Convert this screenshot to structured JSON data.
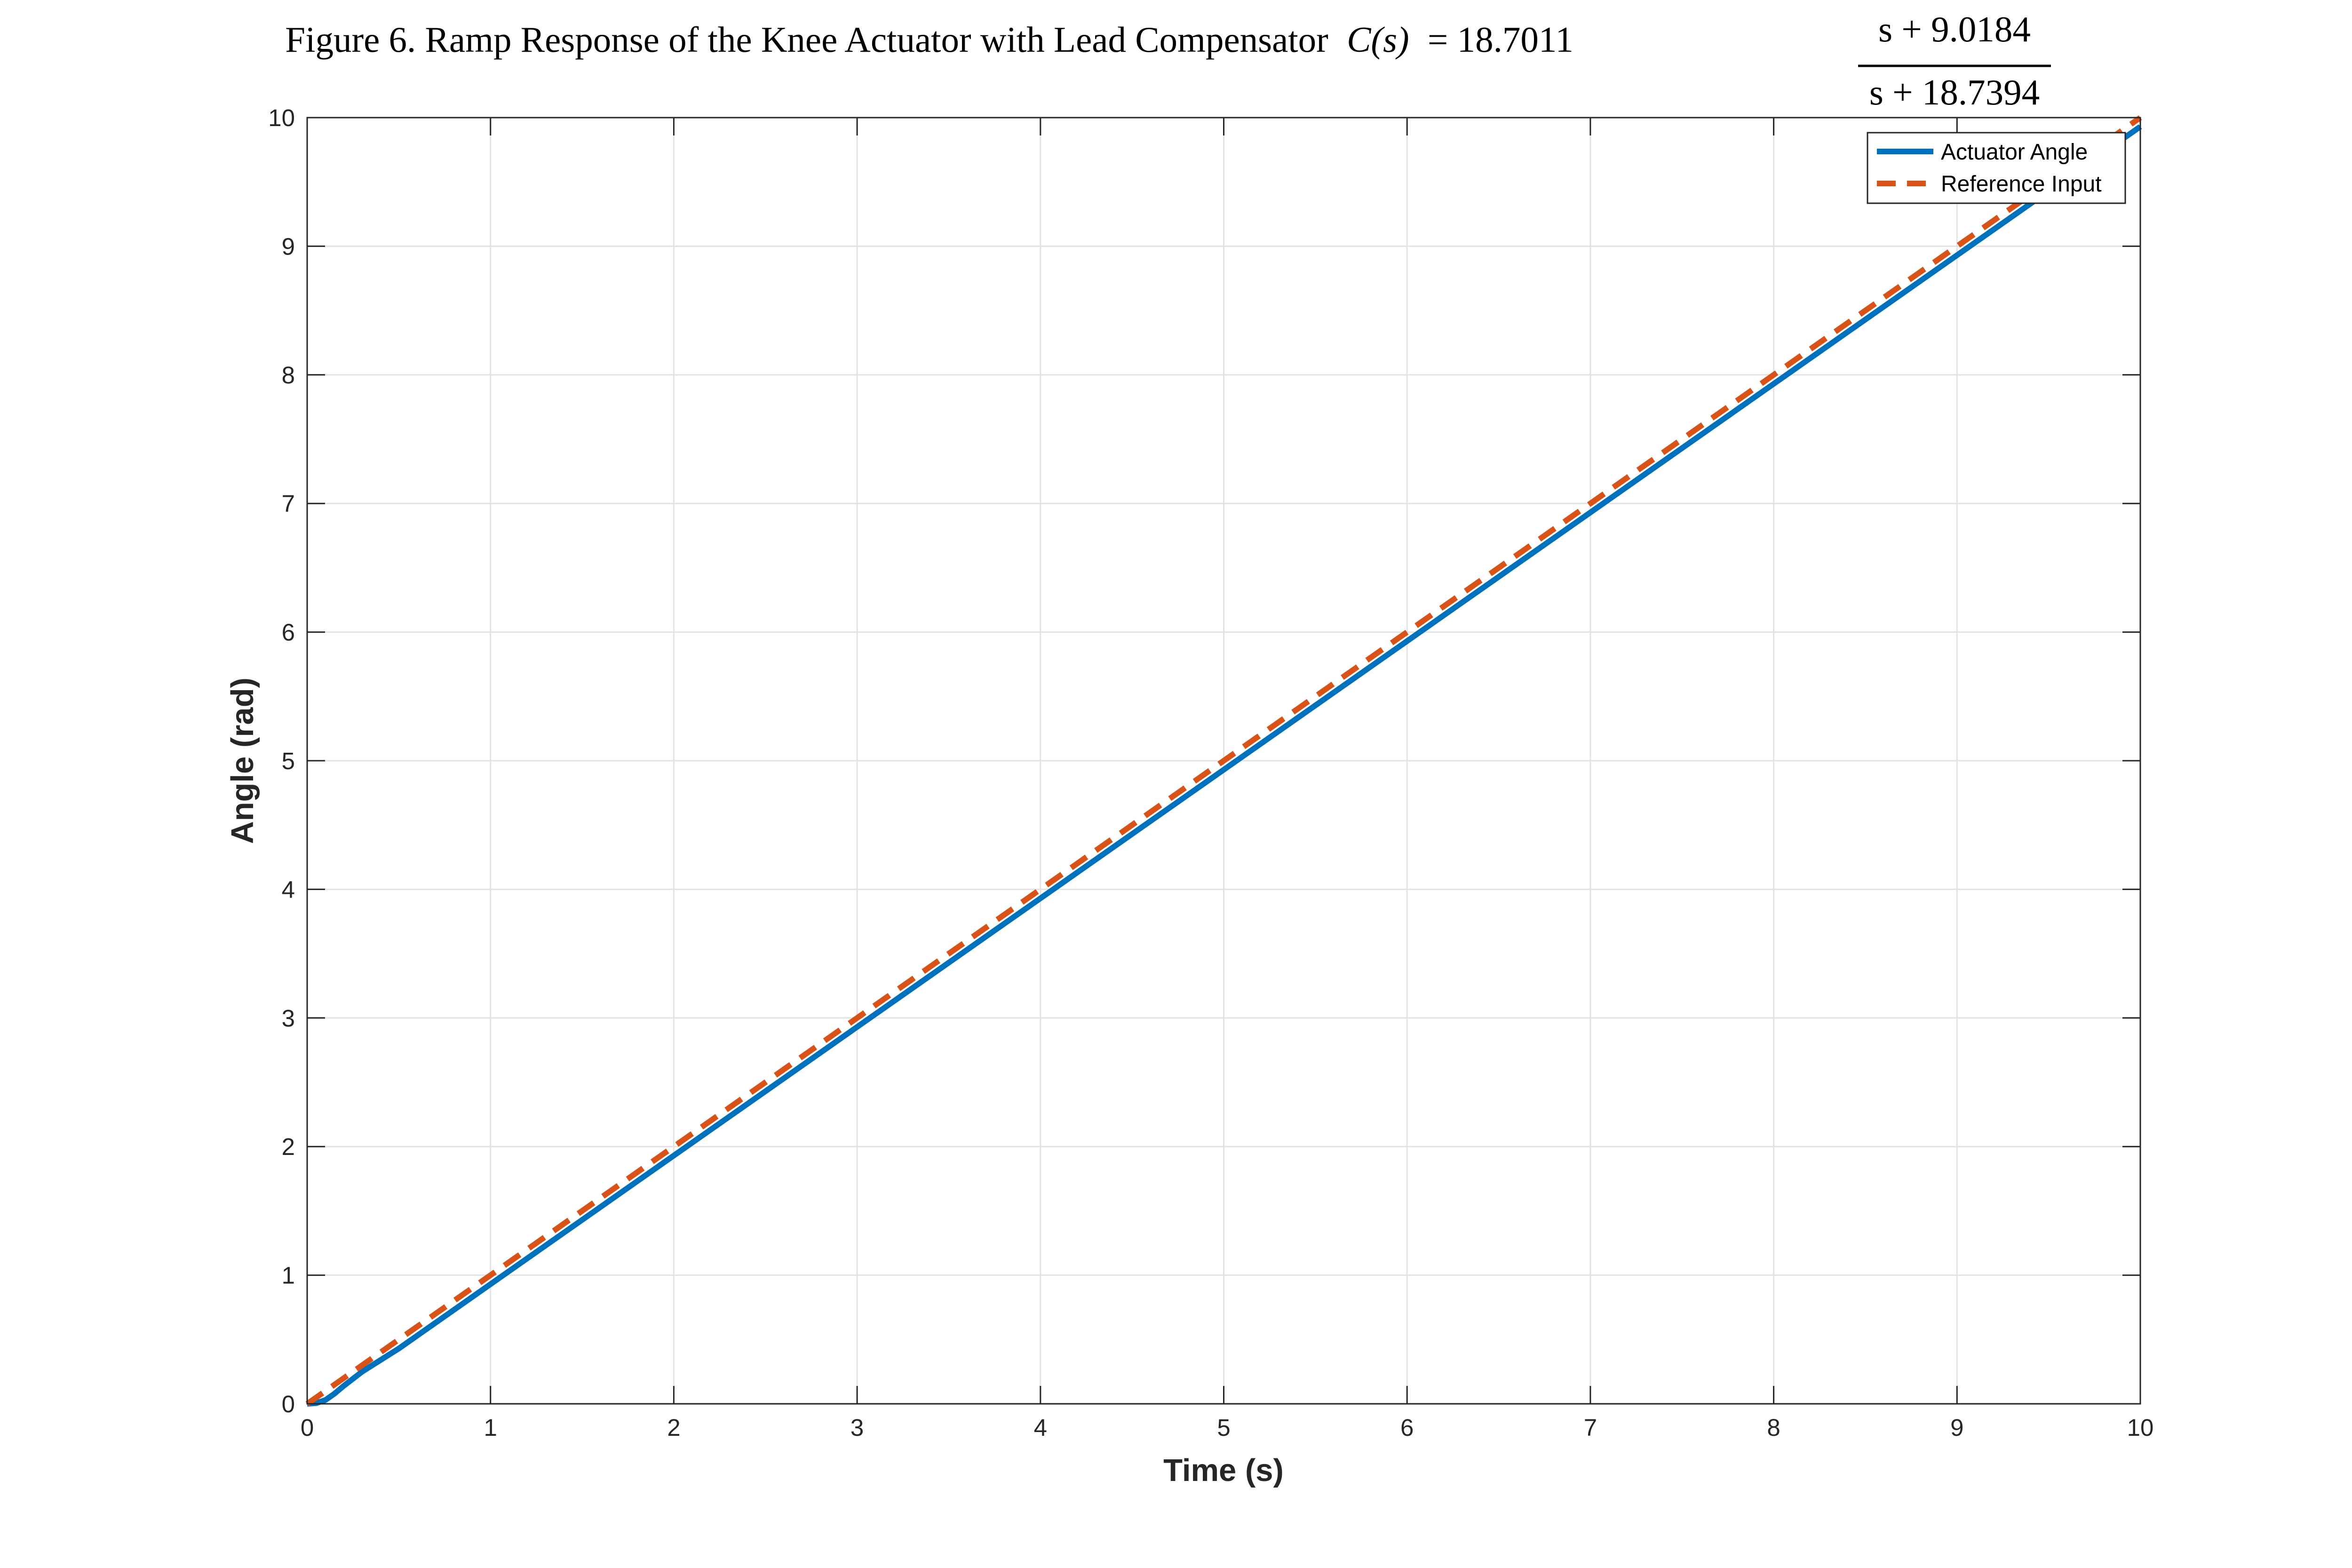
{
  "chart_data": {
    "type": "line",
    "title": {
      "prefix": "Figure 6. Ramp Response of the Knee Actuator with Lead Compensator",
      "function": "C(s)",
      "equals": "= 18.7011",
      "numerator": "s + 9.0184",
      "denominator": "s + 18.7394"
    },
    "xlabel": "Time (s)",
    "ylabel": "Angle (rad)",
    "xlim": [
      0,
      10
    ],
    "ylim": [
      0,
      10
    ],
    "xticks": [
      0,
      1,
      2,
      3,
      4,
      5,
      6,
      7,
      8,
      9,
      10
    ],
    "yticks": [
      0,
      1,
      2,
      3,
      4,
      5,
      6,
      7,
      8,
      9,
      10
    ],
    "grid": true,
    "legend_position": "top-right",
    "series": [
      {
        "name": "Actuator Angle",
        "color": "#0072BD",
        "style": "solid",
        "x": [
          0,
          0.05,
          0.1,
          0.15,
          0.2,
          0.3,
          0.4,
          0.5,
          0.75,
          1,
          2,
          3,
          4,
          5,
          6,
          7,
          8,
          9,
          10
        ],
        "y": [
          0,
          0.005,
          0.03,
          0.08,
          0.14,
          0.25,
          0.34,
          0.43,
          0.68,
          0.93,
          1.93,
          2.93,
          3.93,
          4.93,
          5.93,
          6.93,
          7.93,
          8.93,
          9.93
        ]
      },
      {
        "name": "Reference Input",
        "color": "#D95319",
        "style": "dashed",
        "x": [
          0,
          10
        ],
        "y": [
          0,
          10
        ]
      }
    ]
  }
}
